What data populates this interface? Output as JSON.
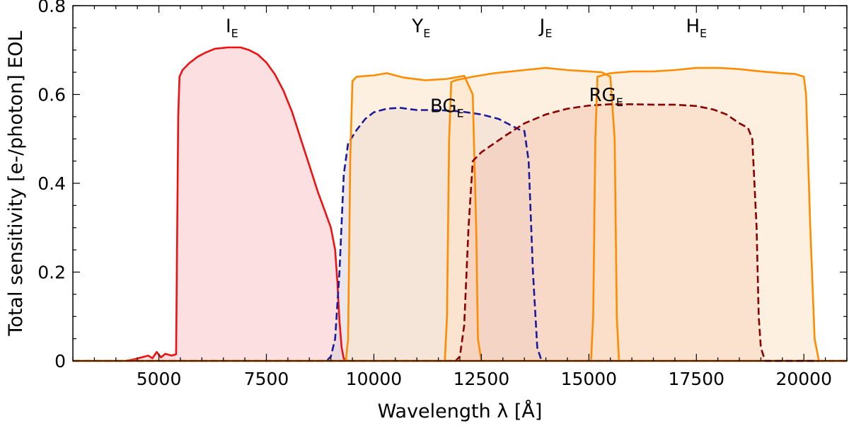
{
  "chart_data": {
    "type": "area",
    "xlabel": "Wavelength λ [Å]",
    "ylabel": "Total sensitivity [e-/photon] EOL",
    "xlim": [
      3000,
      21000
    ],
    "ylim": [
      0,
      0.8
    ],
    "xticks": [
      5000,
      7500,
      10000,
      12500,
      15000,
      17500,
      20000
    ],
    "xtick_labels": [
      "5000",
      "7500",
      "10000",
      "12500",
      "15000",
      "17500",
      "20000"
    ],
    "yticks": [
      0,
      0.2,
      0.4,
      0.6,
      0.8
    ],
    "ytick_labels": [
      "0",
      "0.2",
      "0.4",
      "0.6",
      "0.8"
    ],
    "grid": false,
    "legend": "none",
    "series": [
      {
        "name": "IE",
        "label_main": "I",
        "label_sub": "E",
        "label_at": [
          6700,
          0.74
        ],
        "color": "#ee1111",
        "fill": "#f9c5c8",
        "dash": "solid",
        "points": [
          [
            3000,
            0
          ],
          [
            4200,
            0
          ],
          [
            4400,
            0.003
          ],
          [
            4600,
            0.008
          ],
          [
            4750,
            0.012
          ],
          [
            4850,
            0.006
          ],
          [
            4950,
            0.02
          ],
          [
            5050,
            0.008
          ],
          [
            5150,
            0.016
          ],
          [
            5300,
            0.012
          ],
          [
            5400,
            0.015
          ],
          [
            5450,
            0.55
          ],
          [
            5480,
            0.64
          ],
          [
            5550,
            0.655
          ],
          [
            5700,
            0.67
          ],
          [
            5900,
            0.685
          ],
          [
            6100,
            0.695
          ],
          [
            6300,
            0.703
          ],
          [
            6600,
            0.706
          ],
          [
            6900,
            0.706
          ],
          [
            7100,
            0.7
          ],
          [
            7300,
            0.69
          ],
          [
            7500,
            0.672
          ],
          [
            7700,
            0.645
          ],
          [
            7900,
            0.608
          ],
          [
            8100,
            0.56
          ],
          [
            8300,
            0.5
          ],
          [
            8500,
            0.44
          ],
          [
            8700,
            0.38
          ],
          [
            8850,
            0.34
          ],
          [
            9000,
            0.3
          ],
          [
            9100,
            0.25
          ],
          [
            9150,
            0.18
          ],
          [
            9200,
            0.09
          ],
          [
            9250,
            0.03
          ],
          [
            9300,
            0.005
          ],
          [
            9400,
            0
          ],
          [
            21000,
            0
          ]
        ]
      },
      {
        "name": "BGE",
        "label_main": "BG",
        "label_sub": "E",
        "label_at": [
          11700,
          0.56
        ],
        "color": "#1a1a99",
        "fill": "#d8d2dc",
        "dash": "dashed",
        "points": [
          [
            3000,
            0
          ],
          [
            8900,
            0
          ],
          [
            9000,
            0.01
          ],
          [
            9100,
            0.05
          ],
          [
            9200,
            0.2
          ],
          [
            9300,
            0.42
          ],
          [
            9400,
            0.49
          ],
          [
            9600,
            0.52
          ],
          [
            9800,
            0.545
          ],
          [
            10000,
            0.56
          ],
          [
            10300,
            0.568
          ],
          [
            10600,
            0.57
          ],
          [
            11000,
            0.565
          ],
          [
            11500,
            0.565
          ],
          [
            12000,
            0.562
          ],
          [
            12500,
            0.555
          ],
          [
            12900,
            0.545
          ],
          [
            13200,
            0.53
          ],
          [
            13400,
            0.52
          ],
          [
            13500,
            0.518
          ],
          [
            13600,
            0.45
          ],
          [
            13700,
            0.2
          ],
          [
            13800,
            0.03
          ],
          [
            13900,
            0
          ],
          [
            21000,
            0
          ]
        ]
      },
      {
        "name": "YE",
        "label_main": "Y",
        "label_sub": "E",
        "label_at": [
          11100,
          0.74
        ],
        "color": "#ff8c00",
        "fill": "#fde3c8",
        "dash": "solid",
        "points": [
          [
            3000,
            0
          ],
          [
            9350,
            0
          ],
          [
            9400,
            0.05
          ],
          [
            9450,
            0.45
          ],
          [
            9500,
            0.63
          ],
          [
            9600,
            0.64
          ],
          [
            10000,
            0.643
          ],
          [
            10300,
            0.648
          ],
          [
            10700,
            0.638
          ],
          [
            11200,
            0.632
          ],
          [
            11700,
            0.635
          ],
          [
            12100,
            0.642
          ],
          [
            12300,
            0.6
          ],
          [
            12380,
            0.3
          ],
          [
            12420,
            0.05
          ],
          [
            12500,
            0
          ],
          [
            21000,
            0
          ]
        ]
      },
      {
        "name": "JE",
        "label_main": "J",
        "label_sub": "E",
        "label_at": [
          14000,
          0.74
        ],
        "color": "#ff8c00",
        "fill": "#fde3c8",
        "dash": "solid",
        "points": [
          [
            3000,
            0
          ],
          [
            11650,
            0
          ],
          [
            11700,
            0.1
          ],
          [
            11750,
            0.5
          ],
          [
            11800,
            0.628
          ],
          [
            11900,
            0.632
          ],
          [
            12300,
            0.64
          ],
          [
            12800,
            0.648
          ],
          [
            13500,
            0.655
          ],
          [
            14000,
            0.66
          ],
          [
            14500,
            0.655
          ],
          [
            15000,
            0.652
          ],
          [
            15300,
            0.65
          ],
          [
            15500,
            0.64
          ],
          [
            15600,
            0.5
          ],
          [
            15650,
            0.1
          ],
          [
            15700,
            0
          ],
          [
            21000,
            0
          ]
        ]
      },
      {
        "name": "RGE",
        "label_main": "RG",
        "label_sub": "E",
        "label_at": [
          15400,
          0.585
        ],
        "color": "#8b0000",
        "fill": "#f2c7b4",
        "dash": "dashed",
        "points": [
          [
            3000,
            0
          ],
          [
            11900,
            0
          ],
          [
            12000,
            0.01
          ],
          [
            12100,
            0.08
          ],
          [
            12200,
            0.3
          ],
          [
            12300,
            0.45
          ],
          [
            12500,
            0.47
          ],
          [
            12800,
            0.49
          ],
          [
            13100,
            0.51
          ],
          [
            13500,
            0.535
          ],
          [
            14000,
            0.555
          ],
          [
            14500,
            0.568
          ],
          [
            15000,
            0.575
          ],
          [
            15500,
            0.578
          ],
          [
            16000,
            0.578
          ],
          [
            16500,
            0.577
          ],
          [
            17000,
            0.577
          ],
          [
            17500,
            0.574
          ],
          [
            17900,
            0.566
          ],
          [
            18200,
            0.555
          ],
          [
            18500,
            0.535
          ],
          [
            18700,
            0.525
          ],
          [
            18800,
            0.5
          ],
          [
            18900,
            0.3
          ],
          [
            18950,
            0.1
          ],
          [
            19000,
            0.03
          ],
          [
            19100,
            0
          ],
          [
            21000,
            0
          ]
        ]
      },
      {
        "name": "HE",
        "label_main": "H",
        "label_sub": "E",
        "label_at": [
          17500,
          0.74
        ],
        "color": "#ff8c00",
        "fill": "#fde3c8",
        "dash": "solid",
        "points": [
          [
            3000,
            0
          ],
          [
            15050,
            0
          ],
          [
            15100,
            0.1
          ],
          [
            15150,
            0.5
          ],
          [
            15200,
            0.64
          ],
          [
            15500,
            0.648
          ],
          [
            16000,
            0.652
          ],
          [
            16500,
            0.652
          ],
          [
            17000,
            0.655
          ],
          [
            17500,
            0.66
          ],
          [
            18000,
            0.66
          ],
          [
            18500,
            0.657
          ],
          [
            19000,
            0.652
          ],
          [
            19500,
            0.648
          ],
          [
            19800,
            0.646
          ],
          [
            20000,
            0.64
          ],
          [
            20050,
            0.6
          ],
          [
            20150,
            0.3
          ],
          [
            20250,
            0.05
          ],
          [
            20350,
            0
          ],
          [
            21000,
            0
          ]
        ]
      }
    ]
  }
}
